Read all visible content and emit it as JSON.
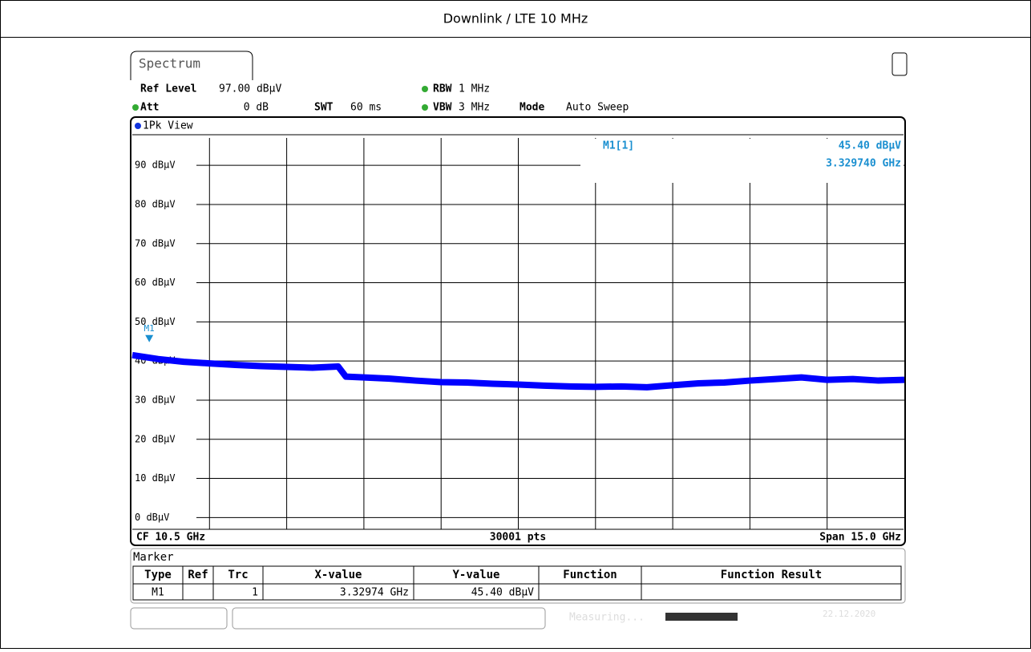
{
  "header": {
    "title": "Downlink / LTE 10 MHz"
  },
  "instrument": {
    "tab": "Spectrum",
    "settings": [
      {
        "label": "Ref Level",
        "value": "97.00 dBµV"
      },
      {
        "label": "Att",
        "value": "0 dB"
      },
      {
        "label": "SWT",
        "value": "60 ms"
      },
      {
        "label": "RBW",
        "value": "1 MHz"
      },
      {
        "label": "VBW",
        "value": "3 MHz"
      },
      {
        "label": "Mode",
        "value": "Auto Sweep"
      }
    ],
    "view_label": "1Pk View",
    "chart_data": {
      "type": "line",
      "xlim": [
        3,
        18
      ],
      "ylim": [
        -3,
        97
      ],
      "xticks": [
        3,
        4.5,
        6,
        7.5,
        9,
        10.5,
        12,
        13.5,
        15,
        16.5,
        18
      ],
      "yticks": [
        {
          "value": 0,
          "label": "0 dBµV"
        },
        {
          "value": 10,
          "label": "10 dBµV"
        },
        {
          "value": 20,
          "label": "20 dBµV"
        },
        {
          "value": 30,
          "label": "30 dBµV"
        },
        {
          "value": 40,
          "label": "40 dBµV"
        },
        {
          "value": 50,
          "label": "50 dBµV"
        },
        {
          "value": 60,
          "label": "60 dBµV"
        },
        {
          "value": 70,
          "label": "70 dBµV"
        },
        {
          "value": 80,
          "label": "80 dBµV"
        },
        {
          "value": 90,
          "label": "90 dBµV"
        }
      ],
      "grid": true,
      "series": [
        {
          "name": "1Pk",
          "color": "#0000ff",
          "x": [
            3,
            3.5,
            4,
            4.5,
            5,
            5.5,
            6,
            6.5,
            7,
            7.15,
            7.5,
            8,
            8.5,
            9,
            9.5,
            10,
            10.5,
            11,
            11.5,
            12,
            12.5,
            13,
            13.5,
            14,
            14.5,
            15,
            15.5,
            16,
            16.5,
            17,
            17.5,
            18
          ],
          "values": [
            41.5,
            40.5,
            39.8,
            39.4,
            39,
            38.7,
            38.5,
            38.3,
            38.6,
            36,
            35.8,
            35.5,
            35,
            34.6,
            34.5,
            34.2,
            34,
            33.7,
            33.5,
            33.4,
            33.5,
            33.3,
            33.8,
            34.3,
            34.5,
            35,
            35.4,
            35.8,
            35.2,
            35.4,
            35,
            35.2
          ]
        }
      ],
      "markers": [
        {
          "name": "M1",
          "readout": "M1[1]",
          "x": 3.32974,
          "y": 45.4,
          "value_label": "45.40 dBµV",
          "x_label": "3.329740 GHz"
        }
      ]
    },
    "footer": {
      "center_freq": "CF 10.5 GHz",
      "points": "30001 pts",
      "span": "Span 15.0 GHz"
    },
    "marker_table": {
      "title": "Marker",
      "headers": [
        "Type",
        "Ref",
        "Trc",
        "X-value",
        "Y-value",
        "Function",
        "Function Result"
      ],
      "row": {
        "type": "M1",
        "trc": "1",
        "x_value": "3.32974 GHz",
        "y_value": "45.40 dBµV"
      }
    },
    "status": {
      "state": "Measuring...",
      "date": "22.12.2020"
    }
  }
}
